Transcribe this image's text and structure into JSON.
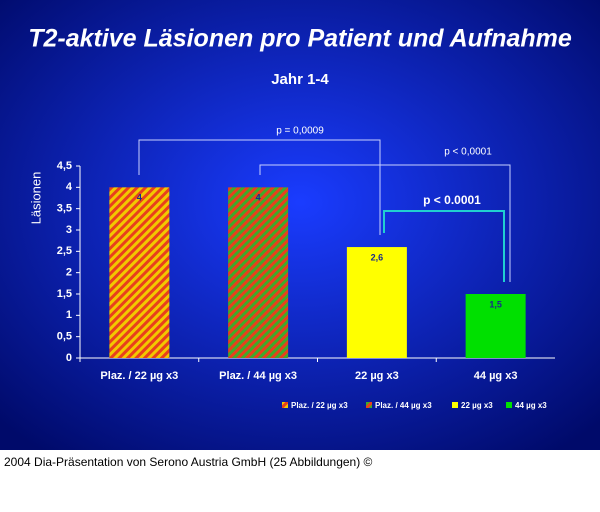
{
  "chart_data": {
    "type": "bar",
    "title": "T2-aktive Läsionen pro Patient und Aufnahme",
    "subtitle": "Jahr 1-4",
    "y_label": "Läsionen",
    "categories": [
      "Plaz. / 22 µg x3",
      "Plaz. / 44 µg x3",
      "22 µg x3",
      "44 µg x3"
    ],
    "values": [
      4,
      4,
      2.6,
      1.5
    ],
    "value_labels": [
      "4",
      "4",
      "2,6",
      "1,5"
    ],
    "bar_fills": [
      {
        "stripe": [
          "#e8401c",
          "#f2c800"
        ]
      },
      {
        "stripe": [
          "#e8401c",
          "#3faa2a"
        ]
      },
      {
        "solid": "#ffff00"
      },
      {
        "solid": "#00e000"
      }
    ],
    "ylim": [
      0,
      4.5
    ],
    "yticks": [
      0,
      {
        "value": 0.5,
        "label": "0,5"
      },
      1,
      {
        "value": 1.5,
        "label": "1,5"
      },
      2,
      {
        "value": 2.5,
        "label": "2,5"
      },
      3,
      {
        "value": 3.5,
        "label": "3,5"
      },
      4,
      {
        "value": 4.5,
        "label": "4,5"
      }
    ],
    "annotations": [
      "p = 0,0009",
      "p < 0,0001",
      "p < 0.0001"
    ],
    "legend": true
  },
  "footer": "2004 Dia-Präsentation von Serono Austria GmbH (25 Abbildungen) ©"
}
